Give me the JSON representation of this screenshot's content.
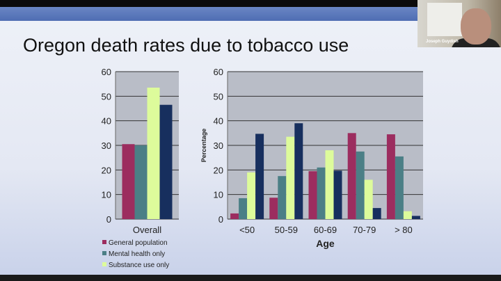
{
  "slide": {
    "title": "Oregon death rates due to tobacco use"
  },
  "video": {
    "participant_name": "Joseph Guydish"
  },
  "colors": {
    "general": "#9c2d5f",
    "mental": "#4b7f86",
    "substance": "#ddfb9b",
    "fourth": "#172f5e",
    "plot_bg": "#b9bdc7"
  },
  "chart_data": [
    {
      "type": "bar",
      "categories": [
        "Overall"
      ],
      "series": [
        {
          "name": "General population",
          "values": [
            30.5
          ]
        },
        {
          "name": "Mental health only",
          "values": [
            30
          ]
        },
        {
          "name": "Substance use only",
          "values": [
            53.5
          ]
        },
        {
          "name": "",
          "values": [
            46.5
          ]
        }
      ],
      "yticks": [
        "0",
        "10",
        "20",
        "30",
        "40",
        "50",
        "60"
      ],
      "ylim": [
        0,
        60
      ],
      "grid": true,
      "legend": [
        "General population",
        "Mental health only",
        "Substance use only"
      ],
      "legend_placement": "bottom"
    },
    {
      "type": "bar",
      "categories": [
        "<50",
        "50-59",
        "60-69",
        "70-79",
        "> 80"
      ],
      "series": [
        {
          "name": "General population",
          "values": [
            2.3,
            8.7,
            19.5,
            35,
            34.5
          ]
        },
        {
          "name": "Mental health only",
          "values": [
            8.5,
            17.5,
            21,
            27.5,
            25.5
          ]
        },
        {
          "name": "Substance use only",
          "values": [
            19,
            33.5,
            28,
            16,
            3.2
          ]
        },
        {
          "name": "",
          "values": [
            34.7,
            39,
            19.7,
            4.5,
            1.3
          ]
        }
      ],
      "yticks": [
        "0",
        "10",
        "20",
        "30",
        "40",
        "50",
        "60"
      ],
      "ylim": [
        0,
        60
      ],
      "xlabel": "Age",
      "ylabel": "Percentage",
      "grid": true
    }
  ]
}
